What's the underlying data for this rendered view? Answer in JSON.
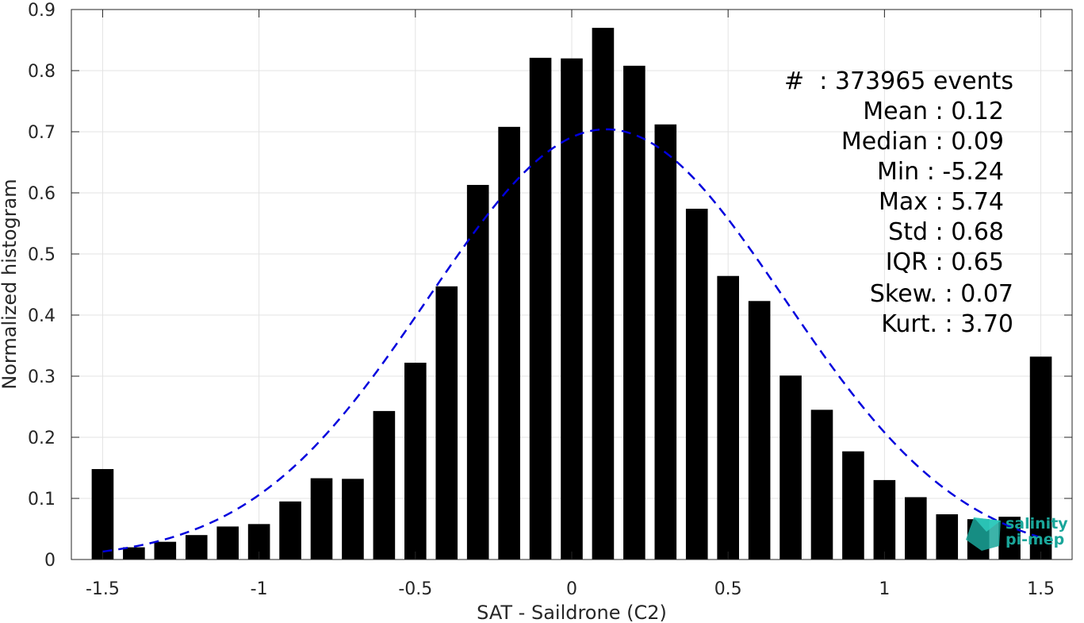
{
  "chart_data": {
    "type": "bar",
    "xlabel": "SAT - Saildrone (C2)",
    "ylabel": "Normalized histogram",
    "xlim": [
      -1.6,
      1.6
    ],
    "ylim": [
      0,
      0.9
    ],
    "grid": true,
    "x_ticks": [
      "-1.5",
      "-1",
      "-0.5",
      "0",
      "0.5",
      "1",
      "1.5"
    ],
    "y_ticks": [
      "0",
      "0.1",
      "0.2",
      "0.3",
      "0.4",
      "0.5",
      "0.6",
      "0.7",
      "0.8",
      "0.9"
    ],
    "bar_width": 0.07,
    "x": [
      -1.5,
      -1.4,
      -1.3,
      -1.2,
      -1.1,
      -1.0,
      -0.9,
      -0.8,
      -0.7,
      -0.6,
      -0.5,
      -0.4,
      -0.3,
      -0.2,
      -0.1,
      0.0,
      0.1,
      0.2,
      0.3,
      0.4,
      0.5,
      0.6,
      0.7,
      0.8,
      0.9,
      1.0,
      1.1,
      1.2,
      1.3,
      1.4,
      1.5
    ],
    "values": [
      0.148,
      0.02,
      0.029,
      0.04,
      0.054,
      0.058,
      0.095,
      0.133,
      0.132,
      0.243,
      0.322,
      0.447,
      0.613,
      0.708,
      0.821,
      0.82,
      0.87,
      0.808,
      0.712,
      0.574,
      0.464,
      0.423,
      0.301,
      0.245,
      0.177,
      0.13,
      0.102,
      0.074,
      0.066,
      0.07,
      0.332
    ],
    "bar_color": "#000000",
    "fit_curve": {
      "kind": "gaussian",
      "style": "dashed",
      "color": "#0000dd",
      "mean": 0.11,
      "std": 0.57,
      "peak": 0.704,
      "x_range": [
        -1.5,
        1.5
      ]
    },
    "annotations": [
      "#  : 373965 events",
      "Mean : 0.12",
      "Median : 0.09",
      "Min : -5.24",
      "Max : 5.74",
      "Std : 0.68",
      "IQR : 0.65",
      "Skew. : 0.07",
      "Kurt. : 3.70"
    ]
  },
  "logo": {
    "line1": "salinity",
    "line2": "pi-mep",
    "color": "#1aa69a"
  }
}
